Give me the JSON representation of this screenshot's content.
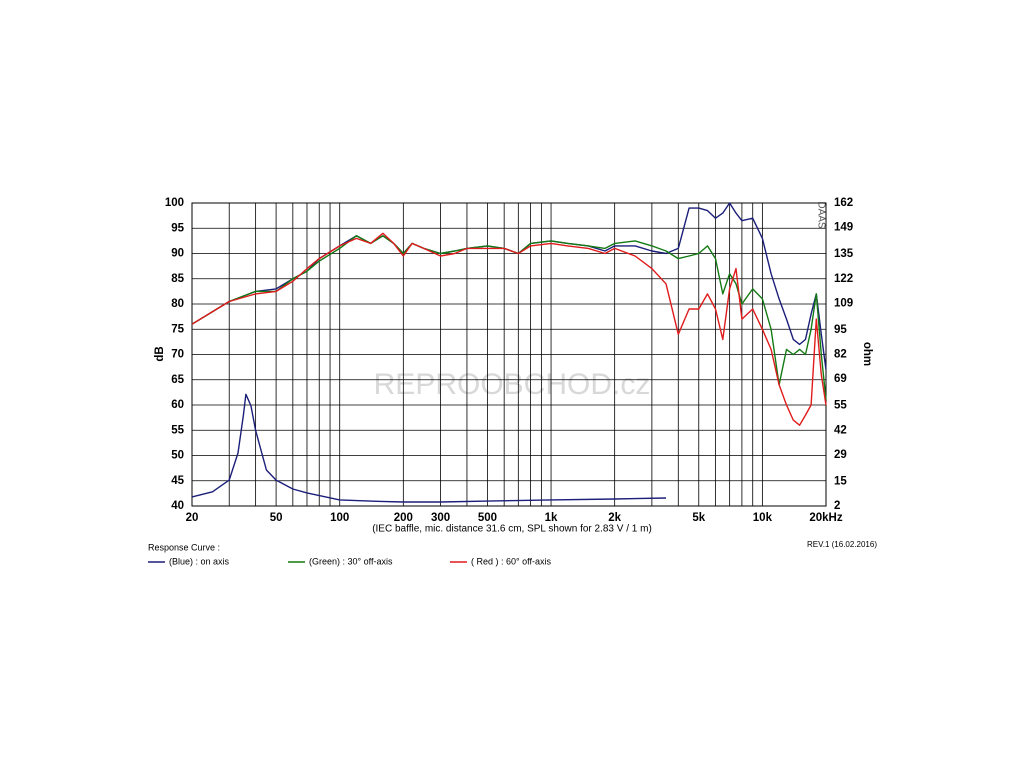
{
  "chart_data": {
    "type": "line",
    "y_label": "dB",
    "y2_label": "ohm",
    "x_label": "(IEC baffle, mic. distance 31.6 cm, SPL shown for 2.83 V / 1 m)",
    "legend_title": "Response Curve :",
    "revision": "REV.1 (16.02.2016)",
    "brand": "DAAS",
    "watermark": "REPROOBCHOD.cz",
    "log_x": true,
    "grid": true,
    "xlim": [
      20,
      20000
    ],
    "xticks": [
      20,
      50,
      100,
      200,
      300,
      500,
      {
        "value": 1000,
        "label": "1k"
      },
      {
        "value": 2000,
        "label": "2k"
      },
      {
        "value": 5000,
        "label": "5k"
      },
      {
        "value": 10000,
        "label": "10k"
      },
      {
        "value": 20000,
        "label": "20kHz"
      }
    ],
    "xgrid": [
      20,
      30,
      40,
      50,
      60,
      70,
      80,
      90,
      100,
      200,
      300,
      400,
      500,
      600,
      700,
      800,
      900,
      1000,
      2000,
      3000,
      4000,
      5000,
      6000,
      7000,
      8000,
      9000,
      10000,
      20000
    ],
    "ylim": [
      40,
      100
    ],
    "yticks": [
      40,
      45,
      50,
      55,
      60,
      65,
      70,
      75,
      80,
      85,
      90,
      95,
      100
    ],
    "y2lim": [
      2,
      162
    ],
    "y2ticks": [
      2,
      15,
      29,
      42,
      55,
      69,
      82,
      95,
      109,
      122,
      135,
      149,
      162
    ],
    "x": [
      20,
      30,
      40,
      50,
      60,
      70,
      80,
      100,
      120,
      140,
      160,
      180,
      200,
      220,
      250,
      300,
      350,
      400,
      500,
      600,
      700,
      800,
      1000,
      1200,
      1500,
      1800,
      2000,
      2500,
      3000,
      3500,
      4000,
      4500,
      5000,
      5500,
      6000,
      6500,
      7000,
      7500,
      8000,
      9000,
      10000,
      11000,
      12000,
      13000,
      14000,
      15000,
      16000,
      17000,
      18000,
      19000,
      20000
    ],
    "series": [
      {
        "name": "(Blue)  : on axis",
        "color": "#1b1f7a",
        "values": [
          76,
          80.5,
          82.5,
          83,
          85,
          86.5,
          89,
          91.5,
          93.5,
          92,
          93.5,
          92,
          90,
          92,
          91,
          90,
          90.5,
          91,
          91.5,
          91,
          90,
          92,
          92.5,
          92,
          91.5,
          90.5,
          91.5,
          91.5,
          90.5,
          90,
          91,
          99,
          99,
          98.5,
          97,
          98,
          100,
          98,
          96.5,
          97,
          93,
          86,
          81,
          77,
          73,
          72,
          73,
          78,
          82,
          74,
          67
        ]
      },
      {
        "name": "(Green) : 30° off-axis",
        "color": "#137a13",
        "values": [
          76,
          80.5,
          82.5,
          82.5,
          85,
          86.5,
          88.5,
          91,
          93.5,
          92,
          93.5,
          92,
          90,
          92,
          91,
          90,
          90.5,
          91,
          91.5,
          91,
          90,
          92,
          92.5,
          92,
          91.5,
          91,
          92,
          92.5,
          91.5,
          90.5,
          89,
          89.5,
          90,
          91.5,
          89,
          82,
          86,
          84,
          80,
          83,
          81,
          75,
          64,
          71,
          70,
          71,
          70,
          75,
          82,
          70,
          61
        ]
      },
      {
        "name": "( Red ) : 60° off-axis",
        "color": "#e01b1b",
        "values": [
          76,
          80.5,
          82,
          82.5,
          84.5,
          87,
          89,
          91.5,
          93,
          92,
          94,
          92,
          89.5,
          92,
          91,
          89.5,
          90,
          91,
          91,
          91,
          90,
          91.5,
          92,
          91.5,
          91,
          90,
          91,
          89.5,
          87,
          84,
          74,
          79,
          79,
          82,
          79,
          73,
          83,
          87,
          77,
          79,
          75,
          71,
          64,
          60,
          57,
          56,
          58,
          60,
          77,
          66,
          60
        ]
      }
    ],
    "impedance": {
      "color": "#1b1f7a",
      "axis": "y2",
      "x": [
        20,
        25,
        30,
        33,
        35,
        36,
        38,
        40,
        45,
        50,
        60,
        70,
        100,
        150,
        200,
        300,
        500,
        1000,
        2000,
        3500
      ],
      "values": [
        6.8,
        9.5,
        15.7,
        30,
        50,
        61,
        55,
        42,
        21,
        15.7,
        11,
        8.9,
        5.2,
        4.5,
        4.1,
        4.1,
        4.6,
        5.2,
        5.7,
        6.2
      ]
    }
  }
}
